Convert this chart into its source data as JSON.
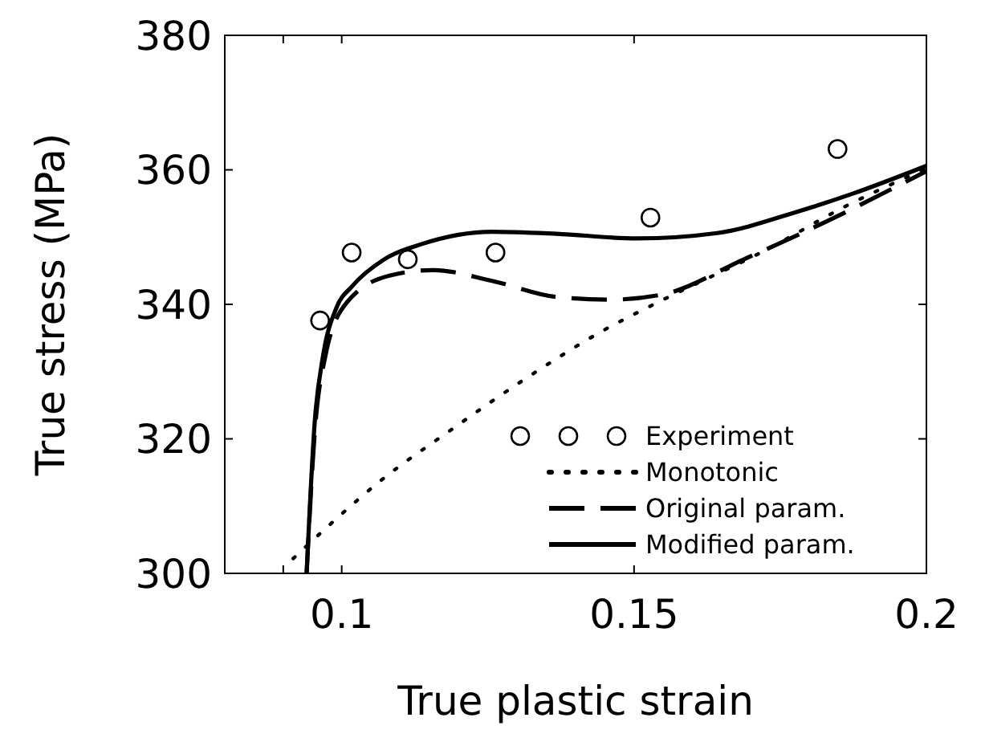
{
  "chart_data": {
    "type": "line",
    "xlabel": "True plastic strain",
    "ylabel": "True stress (MPa)",
    "xlim": [
      0.08,
      0.2
    ],
    "xticks": [
      {
        "value": 0.09,
        "label": null
      },
      0.1,
      0.15,
      0.2
    ],
    "ylim": [
      300,
      380
    ],
    "yticks": [
      300,
      320,
      340,
      360,
      380
    ],
    "grid": false,
    "legend": "bottom right",
    "series": [
      {
        "name": "Experiment",
        "type": "scatter",
        "marker": "circle",
        "color": "#000000",
        "x": [
          0.0963,
          0.1017,
          0.1113,
          0.1263,
          0.1528,
          0.1848
        ],
        "values": [
          337.6,
          347.7,
          346.7,
          347.7,
          352.9,
          363.1
        ]
      },
      {
        "name": "Monotonic",
        "line_style": "dotted",
        "color": "#000000",
        "x": [
          0.0917,
          0.0974,
          0.1064,
          0.1188,
          0.1317,
          0.1447,
          0.155,
          0.1728,
          0.1862,
          0.2
        ],
        "values": [
          302.2,
          306.8,
          313.6,
          321.4,
          329.1,
          336.1,
          340.7,
          348.2,
          354.6,
          360.2
        ]
      },
      {
        "name": "Original param.",
        "line_style": "dashed",
        "color": "#000000",
        "x": [
          0.094,
          0.0954,
          0.0972,
          0.1009,
          0.1083,
          0.1156,
          0.1257,
          0.1367,
          0.1459,
          0.155,
          0.1688,
          0.1826,
          0.2
        ],
        "values": [
          300,
          321.1,
          332.3,
          340.3,
          344.3,
          345.1,
          343.5,
          341.1,
          340.7,
          341.5,
          346.7,
          352.2,
          359.8
        ]
      },
      {
        "name": "Modified param.",
        "line_style": "solid",
        "color": "#000000",
        "x": [
          0.094,
          0.0954,
          0.0968,
          0.0991,
          0.1018,
          0.1073,
          0.1138,
          0.1257,
          0.1367,
          0.1505,
          0.1642,
          0.178,
          0.1872,
          0.2
        ],
        "values": [
          300,
          322.7,
          332.3,
          339.5,
          342.7,
          346.7,
          349,
          350.8,
          350.5,
          349.8,
          350.6,
          353.8,
          356.4,
          360.6
        ]
      }
    ]
  }
}
